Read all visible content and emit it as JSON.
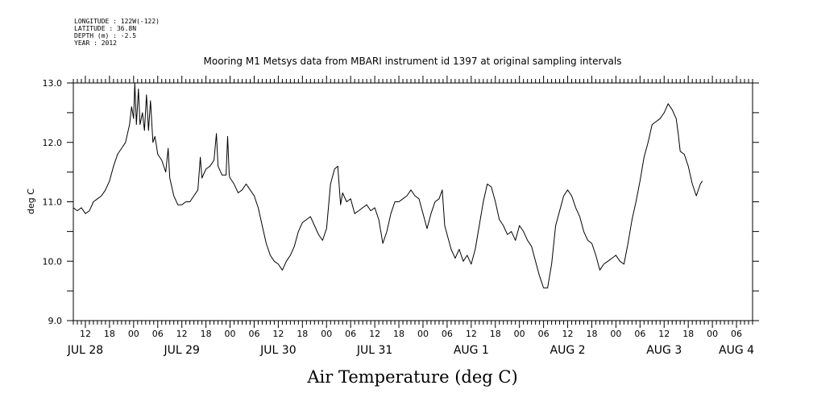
{
  "header": {
    "meta_lines": [
      "LONGITUDE : 122W(-122)",
      "LATITUDE : 36.8N",
      "DEPTH (m) : -2.5",
      "YEAR : 2012"
    ],
    "title": "Mooring M1 Metsys data from MBARI instrument id 1397 at original sampling intervals"
  },
  "chart_data": {
    "type": "line",
    "title": "Mooring M1 Metsys data from MBARI instrument id 1397 at original sampling intervals",
    "xlabel": "Air Temperature (deg C)",
    "ylabel": "deg C",
    "ylim": [
      9.0,
      13.0
    ],
    "yticks": [
      9.0,
      10.0,
      11.0,
      12.0,
      13.0
    ],
    "ytick_labels": [
      "9.0",
      "10.0",
      "11.0",
      "12.0",
      "13.0"
    ],
    "x_unit": "hours since 2012-07-28 00:00",
    "xlim": [
      9,
      178
    ],
    "hour_ticks": [
      12,
      18,
      24,
      30,
      36,
      42,
      48,
      54,
      60,
      66,
      72,
      78,
      84,
      90,
      96,
      102,
      108,
      114,
      120,
      126,
      132,
      138,
      144,
      150,
      156,
      162,
      168,
      174
    ],
    "hour_tick_labels": [
      "12",
      "18",
      "00",
      "06",
      "12",
      "18",
      "00",
      "06",
      "12",
      "18",
      "00",
      "06",
      "12",
      "18",
      "00",
      "06",
      "12",
      "18",
      "00",
      "06",
      "12",
      "18",
      "00",
      "06",
      "12",
      "18",
      "00",
      "06"
    ],
    "day_labels": [
      {
        "hour": 12,
        "label": "JUL 28"
      },
      {
        "hour": 36,
        "label": "JUL 29"
      },
      {
        "hour": 60,
        "label": "JUL 30"
      },
      {
        "hour": 84,
        "label": "JUL 31"
      },
      {
        "hour": 108,
        "label": "AUG  1"
      },
      {
        "hour": 132,
        "label": "AUG  2"
      },
      {
        "hour": 156,
        "label": "AUG  3"
      },
      {
        "hour": 174,
        "label": "AUG  4"
      }
    ],
    "grid": false,
    "series": [
      {
        "color": "#000000",
        "points": [
          [
            9,
            10.9
          ],
          [
            10,
            10.85
          ],
          [
            11,
            10.9
          ],
          [
            12,
            10.8
          ],
          [
            13,
            10.85
          ],
          [
            14,
            11.0
          ],
          [
            15,
            11.05
          ],
          [
            16,
            11.1
          ],
          [
            17,
            11.2
          ],
          [
            18,
            11.35
          ],
          [
            19,
            11.6
          ],
          [
            20,
            11.8
          ],
          [
            21,
            11.9
          ],
          [
            22,
            12.0
          ],
          [
            23,
            12.3
          ],
          [
            23.5,
            12.6
          ],
          [
            24,
            12.4
          ],
          [
            24.3,
            13.0
          ],
          [
            24.7,
            12.3
          ],
          [
            25.2,
            12.9
          ],
          [
            25.6,
            12.3
          ],
          [
            26.2,
            12.5
          ],
          [
            26.7,
            12.2
          ],
          [
            27.2,
            12.8
          ],
          [
            27.7,
            12.2
          ],
          [
            28.2,
            12.7
          ],
          [
            28.8,
            12.0
          ],
          [
            29.3,
            12.1
          ],
          [
            30,
            11.8
          ],
          [
            31,
            11.7
          ],
          [
            32,
            11.5
          ],
          [
            32.6,
            11.9
          ],
          [
            33,
            11.4
          ],
          [
            34,
            11.1
          ],
          [
            35,
            10.95
          ],
          [
            36,
            10.95
          ],
          [
            37,
            11.0
          ],
          [
            38,
            11.0
          ],
          [
            39,
            11.1
          ],
          [
            40,
            11.2
          ],
          [
            40.6,
            11.75
          ],
          [
            41,
            11.4
          ],
          [
            42,
            11.55
          ],
          [
            43,
            11.6
          ],
          [
            44,
            11.7
          ],
          [
            44.6,
            12.15
          ],
          [
            45,
            11.6
          ],
          [
            46,
            11.45
          ],
          [
            47,
            11.45
          ],
          [
            47.4,
            12.1
          ],
          [
            47.8,
            11.45
          ],
          [
            48,
            11.4
          ],
          [
            49,
            11.3
          ],
          [
            50,
            11.15
          ],
          [
            51,
            11.2
          ],
          [
            52,
            11.3
          ],
          [
            53,
            11.2
          ],
          [
            54,
            11.1
          ],
          [
            55,
            10.9
          ],
          [
            56,
            10.6
          ],
          [
            57,
            10.3
          ],
          [
            58,
            10.1
          ],
          [
            59,
            10.0
          ],
          [
            60,
            9.95
          ],
          [
            61,
            9.85
          ],
          [
            62,
            10.0
          ],
          [
            63,
            10.1
          ],
          [
            64,
            10.25
          ],
          [
            65,
            10.5
          ],
          [
            66,
            10.65
          ],
          [
            67,
            10.7
          ],
          [
            68,
            10.75
          ],
          [
            69,
            10.6
          ],
          [
            70,
            10.45
          ],
          [
            71,
            10.35
          ],
          [
            72,
            10.55
          ],
          [
            73,
            11.3
          ],
          [
            74,
            11.55
          ],
          [
            74.8,
            11.6
          ],
          [
            75.5,
            10.95
          ],
          [
            76,
            11.15
          ],
          [
            77,
            11.0
          ],
          [
            78,
            11.05
          ],
          [
            79,
            10.8
          ],
          [
            80,
            10.85
          ],
          [
            81,
            10.9
          ],
          [
            82,
            10.95
          ],
          [
            83,
            10.85
          ],
          [
            84,
            10.9
          ],
          [
            85,
            10.7
          ],
          [
            86,
            10.3
          ],
          [
            87,
            10.5
          ],
          [
            88,
            10.8
          ],
          [
            89,
            11.0
          ],
          [
            90,
            11.0
          ],
          [
            91,
            11.05
          ],
          [
            92,
            11.1
          ],
          [
            93,
            11.2
          ],
          [
            94,
            11.1
          ],
          [
            95,
            11.05
          ],
          [
            96,
            10.8
          ],
          [
            97,
            10.55
          ],
          [
            98,
            10.8
          ],
          [
            99,
            11.0
          ],
          [
            100,
            11.05
          ],
          [
            100.8,
            11.2
          ],
          [
            101.4,
            10.6
          ],
          [
            102,
            10.45
          ],
          [
            103,
            10.2
          ],
          [
            104,
            10.05
          ],
          [
            105,
            10.2
          ],
          [
            106,
            10.0
          ],
          [
            107,
            10.1
          ],
          [
            108,
            9.95
          ],
          [
            109,
            10.2
          ],
          [
            110,
            10.6
          ],
          [
            111,
            11.0
          ],
          [
            112,
            11.3
          ],
          [
            113,
            11.25
          ],
          [
            114,
            11.0
          ],
          [
            115,
            10.7
          ],
          [
            116,
            10.6
          ],
          [
            117,
            10.45
          ],
          [
            118,
            10.5
          ],
          [
            119,
            10.35
          ],
          [
            120,
            10.6
          ],
          [
            121,
            10.5
          ],
          [
            122,
            10.35
          ],
          [
            123,
            10.25
          ],
          [
            124,
            10.0
          ],
          [
            125,
            9.75
          ],
          [
            126,
            9.55
          ],
          [
            127,
            9.55
          ],
          [
            128,
            9.95
          ],
          [
            129,
            10.6
          ],
          [
            130,
            10.85
          ],
          [
            131,
            11.1
          ],
          [
            132,
            11.2
          ],
          [
            133,
            11.1
          ],
          [
            134,
            10.9
          ],
          [
            135,
            10.75
          ],
          [
            136,
            10.5
          ],
          [
            137,
            10.35
          ],
          [
            138,
            10.3
          ],
          [
            139,
            10.1
          ],
          [
            140,
            9.85
          ],
          [
            141,
            9.95
          ],
          [
            142,
            10.0
          ],
          [
            143,
            10.05
          ],
          [
            144,
            10.1
          ],
          [
            145,
            10.0
          ],
          [
            146,
            9.95
          ],
          [
            147,
            10.3
          ],
          [
            148,
            10.7
          ],
          [
            149,
            11.0
          ],
          [
            150,
            11.35
          ],
          [
            151,
            11.75
          ],
          [
            152,
            12.0
          ],
          [
            153,
            12.3
          ],
          [
            154,
            12.35
          ],
          [
            155,
            12.4
          ],
          [
            156,
            12.5
          ],
          [
            157,
            12.65
          ],
          [
            158,
            12.55
          ],
          [
            159,
            12.4
          ],
          [
            159.5,
            12.15
          ],
          [
            160,
            11.85
          ],
          [
            161,
            11.8
          ],
          [
            162,
            11.6
          ],
          [
            163,
            11.3
          ],
          [
            164,
            11.1
          ],
          [
            165,
            11.3
          ],
          [
            165.5,
            11.35
          ]
        ]
      }
    ]
  }
}
